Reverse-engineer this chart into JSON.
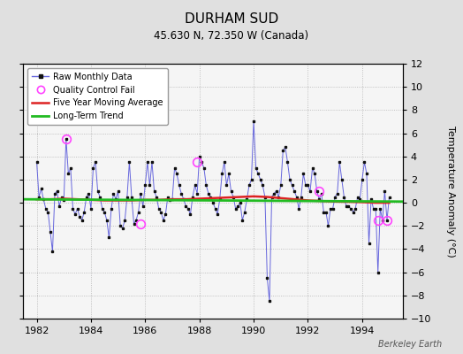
{
  "title": "DURHAM SUD",
  "subtitle": "45.630 N, 72.350 W (Canada)",
  "ylabel": "Temperature Anomaly (°C)",
  "credit": "Berkeley Earth",
  "background_color": "#e0e0e0",
  "plot_bg_color": "#f5f5f5",
  "xlim": [
    1981.5,
    1995.5
  ],
  "ylim": [
    -10,
    12
  ],
  "yticks": [
    -10,
    -8,
    -6,
    -4,
    -2,
    0,
    2,
    4,
    6,
    8,
    10,
    12
  ],
  "xticks": [
    1982,
    1984,
    1986,
    1988,
    1990,
    1992,
    1994
  ],
  "raw_data": {
    "x": [
      1982.0,
      1982.083,
      1982.167,
      1982.25,
      1982.333,
      1982.417,
      1982.5,
      1982.583,
      1982.667,
      1982.75,
      1982.833,
      1982.917,
      1983.0,
      1983.083,
      1983.167,
      1983.25,
      1983.333,
      1983.417,
      1983.5,
      1983.583,
      1983.667,
      1983.75,
      1983.833,
      1983.917,
      1984.0,
      1984.083,
      1984.167,
      1984.25,
      1984.333,
      1984.417,
      1984.5,
      1984.583,
      1984.667,
      1984.75,
      1984.833,
      1984.917,
      1985.0,
      1985.083,
      1985.167,
      1985.25,
      1985.333,
      1985.417,
      1985.5,
      1985.583,
      1985.667,
      1985.75,
      1985.833,
      1985.917,
      1986.0,
      1986.083,
      1986.167,
      1986.25,
      1986.333,
      1986.417,
      1986.5,
      1986.583,
      1986.667,
      1986.75,
      1986.833,
      1986.917,
      1987.0,
      1987.083,
      1987.167,
      1987.25,
      1987.333,
      1987.417,
      1987.5,
      1987.583,
      1987.667,
      1987.75,
      1987.833,
      1987.917,
      1988.0,
      1988.083,
      1988.167,
      1988.25,
      1988.333,
      1988.417,
      1988.5,
      1988.583,
      1988.667,
      1988.75,
      1988.833,
      1988.917,
      1989.0,
      1989.083,
      1989.167,
      1989.25,
      1989.333,
      1989.417,
      1989.5,
      1989.583,
      1989.667,
      1989.75,
      1989.833,
      1989.917,
      1990.0,
      1990.083,
      1990.167,
      1990.25,
      1990.333,
      1990.417,
      1990.5,
      1990.583,
      1990.667,
      1990.75,
      1990.833,
      1990.917,
      1991.0,
      1991.083,
      1991.167,
      1991.25,
      1991.333,
      1991.417,
      1991.5,
      1991.583,
      1991.667,
      1991.75,
      1991.833,
      1991.917,
      1992.0,
      1992.083,
      1992.167,
      1992.25,
      1992.333,
      1992.417,
      1992.5,
      1992.583,
      1992.667,
      1992.75,
      1992.833,
      1992.917,
      1993.0,
      1993.083,
      1993.167,
      1993.25,
      1993.333,
      1993.417,
      1993.5,
      1993.583,
      1993.667,
      1993.75,
      1993.833,
      1993.917,
      1994.0,
      1994.083,
      1994.167,
      1994.25,
      1994.333,
      1994.417,
      1994.5,
      1994.583,
      1994.667,
      1994.75,
      1994.833,
      1994.917,
      1995.0
    ],
    "y": [
      3.5,
      0.5,
      1.2,
      0.3,
      -0.5,
      -0.8,
      -2.5,
      -4.2,
      0.8,
      1.0,
      -0.3,
      0.5,
      0.2,
      5.5,
      2.5,
      3.0,
      -0.5,
      -1.0,
      -0.5,
      -1.2,
      -1.5,
      -0.8,
      0.5,
      0.8,
      -0.5,
      3.0,
      3.5,
      1.0,
      0.5,
      -0.5,
      -0.8,
      -1.5,
      -3.0,
      -0.5,
      0.8,
      0.3,
      1.0,
      -2.0,
      -2.2,
      -1.5,
      0.5,
      3.5,
      0.5,
      -1.8,
      -1.5,
      -0.8,
      0.8,
      -0.3,
      1.5,
      3.5,
      1.5,
      3.5,
      1.0,
      0.5,
      -0.5,
      -0.8,
      -1.5,
      -1.0,
      0.5,
      0.2,
      0.3,
      3.0,
      2.5,
      1.5,
      0.8,
      0.3,
      -0.3,
      -0.5,
      -1.0,
      0.5,
      1.5,
      0.8,
      4.0,
      3.5,
      3.0,
      1.5,
      0.8,
      0.5,
      0.0,
      -0.5,
      -1.0,
      0.3,
      2.5,
      3.5,
      1.5,
      2.5,
      1.0,
      0.5,
      -0.5,
      -0.3,
      0.0,
      -1.5,
      -0.8,
      0.3,
      1.5,
      2.0,
      7.0,
      3.0,
      2.5,
      2.0,
      1.5,
      0.5,
      -6.5,
      -8.5,
      0.5,
      0.8,
      1.0,
      0.5,
      1.5,
      4.5,
      4.8,
      3.5,
      2.0,
      1.5,
      1.0,
      0.5,
      -0.5,
      0.5,
      2.5,
      1.5,
      1.5,
      1.0,
      3.0,
      2.5,
      1.0,
      0.3,
      0.8,
      -0.8,
      -0.8,
      -2.0,
      -0.5,
      -0.5,
      0.5,
      0.8,
      3.5,
      2.0,
      0.5,
      -0.3,
      -0.3,
      -0.5,
      -0.8,
      -0.5,
      0.5,
      0.3,
      2.0,
      3.5,
      2.5,
      -3.5,
      0.3,
      -0.5,
      -0.5,
      -6.0,
      -0.5,
      -1.5,
      1.0,
      -1.5,
      0.5
    ]
  },
  "qc_fail_x": [
    1983.083,
    1985.833,
    1987.917,
    1992.417,
    1994.583,
    1994.917
  ],
  "qc_fail_y": [
    5.5,
    -1.8,
    3.5,
    1.0,
    -1.5,
    -1.5
  ],
  "moving_avg_x": [
    1982.0,
    1982.5,
    1983.0,
    1983.5,
    1984.0,
    1984.5,
    1985.0,
    1985.5,
    1986.0,
    1986.5,
    1987.0,
    1987.5,
    1988.0,
    1988.5,
    1989.0,
    1989.5,
    1990.0,
    1990.5,
    1991.0,
    1991.5,
    1992.0,
    1992.5,
    1993.0,
    1993.5,
    1994.0,
    1994.5,
    1995.0
  ],
  "moving_avg_y": [
    0.3,
    0.3,
    0.35,
    0.3,
    0.25,
    0.2,
    0.2,
    0.2,
    0.25,
    0.25,
    0.3,
    0.3,
    0.35,
    0.4,
    0.45,
    0.5,
    0.55,
    0.5,
    0.4,
    0.3,
    0.2,
    0.15,
    0.1,
    0.08,
    0.05,
    0.0,
    0.0
  ],
  "trend_x": [
    1981.5,
    1995.5
  ],
  "trend_y": [
    0.3,
    0.1
  ],
  "line_color": "#6666dd",
  "marker_color": "#111111",
  "qc_color": "#ff44ff",
  "moving_avg_color": "#dd2222",
  "trend_color": "#22bb22",
  "title_fontsize": 11,
  "subtitle_fontsize": 8.5,
  "tick_fontsize": 8,
  "ylabel_fontsize": 8,
  "legend_fontsize": 7,
  "credit_fontsize": 7
}
